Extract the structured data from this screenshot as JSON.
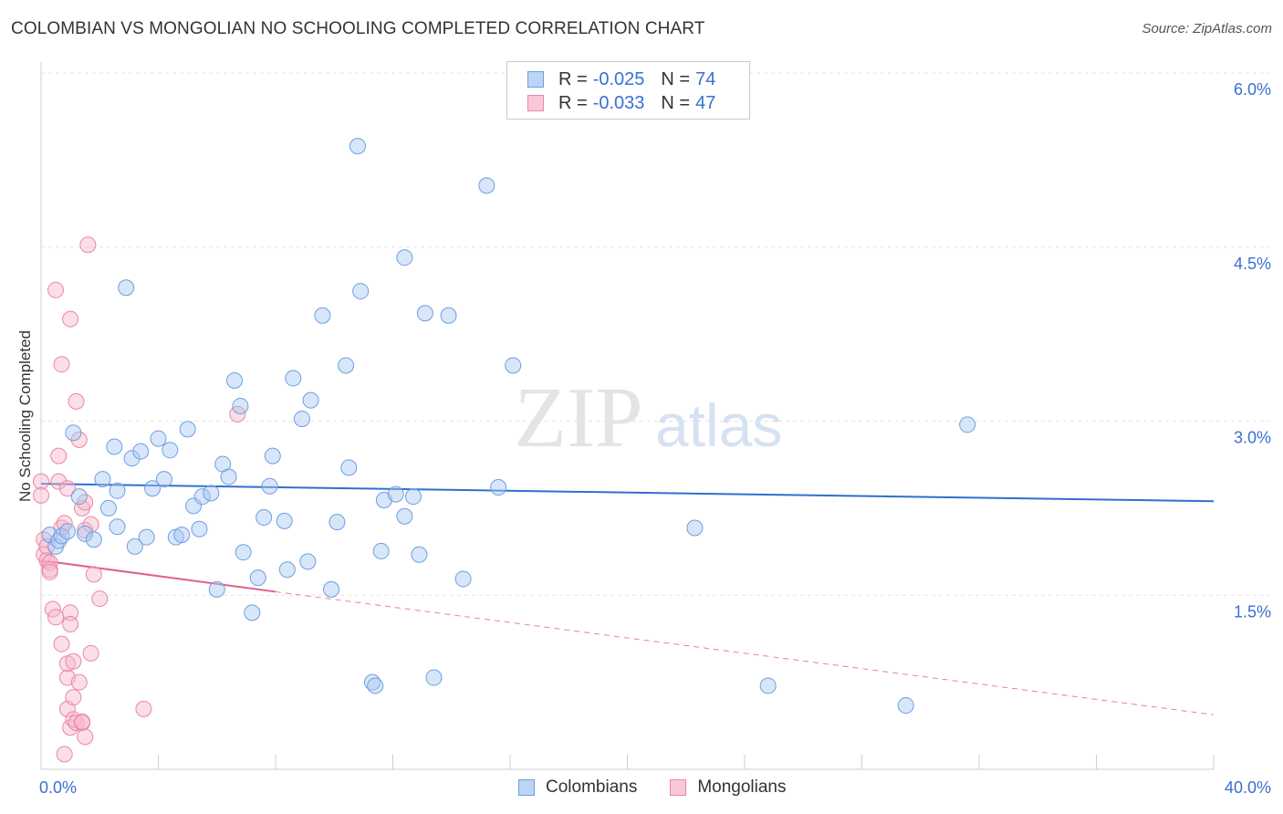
{
  "title": "COLOMBIAN VS MONGOLIAN NO SCHOOLING COMPLETED CORRELATION CHART",
  "source": "Source: ZipAtlas.com",
  "watermark": {
    "zip": "ZIP",
    "atlas": "atlas"
  },
  "legend": {
    "rows": [
      {
        "r_label": "R = ",
        "r_value": "-0.025",
        "n_label": "N = ",
        "n_value": "74"
      },
      {
        "r_label": "R = ",
        "r_value": "-0.033",
        "n_label": "N = ",
        "n_value": "47"
      }
    ]
  },
  "bottom_legend": {
    "colombians": "Colombians",
    "mongolians": "Mongolians"
  },
  "colors": {
    "blue_fill": "#a9c8f2",
    "blue_stroke": "#6d9fe0",
    "blue_line": "#2f6fcf",
    "pink_fill": "#f7b6c9",
    "pink_stroke": "#e888a6",
    "pink_line": "#e0608b",
    "axis_text": "#3a6fd1"
  },
  "chart_data": {
    "type": "scatter",
    "title": "COLOMBIAN VS MONGOLIAN NO SCHOOLING COMPLETED CORRELATION CHART",
    "xlabel": "",
    "ylabel": "No Schooling Completed",
    "xlim": [
      0,
      40
    ],
    "ylim": [
      0,
      6.2
    ],
    "x_tick_labels": [
      "0.0%",
      "40.0%"
    ],
    "y_ticks": [
      1.5,
      3.0,
      4.5,
      6.0
    ],
    "y_tick_labels": [
      "1.5%",
      "3.0%",
      "4.5%",
      "6.0%"
    ],
    "series": [
      {
        "name": "Colombians",
        "r": -0.025,
        "n": 74,
        "trend": {
          "x": [
            0,
            40
          ],
          "y": [
            2.46,
            2.31
          ]
        },
        "points": [
          [
            0.3,
            2.02
          ],
          [
            0.5,
            1.92
          ],
          [
            0.6,
            1.97
          ],
          [
            0.7,
            2.01
          ],
          [
            0.9,
            2.05
          ],
          [
            1.1,
            2.9
          ],
          [
            1.3,
            2.35
          ],
          [
            1.5,
            2.03
          ],
          [
            1.8,
            1.98
          ],
          [
            2.1,
            2.5
          ],
          [
            2.3,
            2.25
          ],
          [
            2.5,
            2.78
          ],
          [
            2.6,
            2.4
          ],
          [
            2.6,
            2.09
          ],
          [
            2.9,
            4.15
          ],
          [
            3.1,
            2.68
          ],
          [
            3.2,
            1.92
          ],
          [
            3.4,
            2.74
          ],
          [
            3.6,
            2.0
          ],
          [
            3.8,
            2.42
          ],
          [
            4.0,
            2.85
          ],
          [
            4.2,
            2.5
          ],
          [
            4.4,
            2.75
          ],
          [
            4.6,
            2.0
          ],
          [
            4.8,
            2.02
          ],
          [
            5.0,
            2.93
          ],
          [
            5.2,
            2.27
          ],
          [
            5.4,
            2.07
          ],
          [
            5.5,
            2.35
          ],
          [
            5.8,
            2.38
          ],
          [
            6.0,
            1.55
          ],
          [
            6.2,
            2.63
          ],
          [
            6.4,
            2.52
          ],
          [
            6.6,
            3.35
          ],
          [
            6.8,
            3.13
          ],
          [
            6.9,
            1.87
          ],
          [
            7.2,
            1.35
          ],
          [
            7.4,
            1.65
          ],
          [
            7.6,
            2.17
          ],
          [
            7.8,
            2.44
          ],
          [
            7.9,
            2.7
          ],
          [
            8.3,
            2.14
          ],
          [
            8.4,
            1.72
          ],
          [
            8.6,
            3.37
          ],
          [
            8.9,
            3.02
          ],
          [
            9.1,
            1.79
          ],
          [
            9.2,
            3.18
          ],
          [
            9.6,
            3.91
          ],
          [
            9.9,
            1.55
          ],
          [
            10.1,
            2.13
          ],
          [
            10.4,
            3.48
          ],
          [
            10.5,
            2.6
          ],
          [
            10.8,
            5.37
          ],
          [
            10.9,
            4.12
          ],
          [
            11.3,
            0.75
          ],
          [
            11.4,
            0.72
          ],
          [
            11.6,
            1.88
          ],
          [
            11.7,
            2.32
          ],
          [
            12.1,
            2.37
          ],
          [
            12.4,
            2.18
          ],
          [
            12.4,
            4.41
          ],
          [
            12.7,
            2.35
          ],
          [
            12.9,
            1.85
          ],
          [
            13.1,
            3.93
          ],
          [
            13.4,
            0.79
          ],
          [
            13.9,
            3.91
          ],
          [
            14.4,
            1.64
          ],
          [
            15.2,
            5.03
          ],
          [
            15.6,
            2.43
          ],
          [
            16.1,
            3.48
          ],
          [
            22.3,
            2.08
          ],
          [
            24.8,
            0.72
          ],
          [
            29.5,
            0.55
          ],
          [
            31.6,
            2.97
          ]
        ]
      },
      {
        "name": "Mongolians",
        "r": -0.033,
        "n": 47,
        "trend": {
          "x": [
            0,
            8
          ],
          "y": [
            1.8,
            1.53
          ]
        },
        "trend_extended": {
          "x": [
            8,
            40
          ],
          "y": [
            1.53,
            0.47
          ]
        },
        "points": [
          [
            0.0,
            2.48
          ],
          [
            0.0,
            2.36
          ],
          [
            0.1,
            1.98
          ],
          [
            0.1,
            1.85
          ],
          [
            0.2,
            1.8
          ],
          [
            0.2,
            1.92
          ],
          [
            0.3,
            1.78
          ],
          [
            0.3,
            1.72
          ],
          [
            0.3,
            1.7
          ],
          [
            0.4,
            1.38
          ],
          [
            0.5,
            1.31
          ],
          [
            0.5,
            4.13
          ],
          [
            0.6,
            2.48
          ],
          [
            0.6,
            2.7
          ],
          [
            0.7,
            3.49
          ],
          [
            0.7,
            1.08
          ],
          [
            0.7,
            2.08
          ],
          [
            0.8,
            2.12
          ],
          [
            0.8,
            0.13
          ],
          [
            0.9,
            0.79
          ],
          [
            0.9,
            0.91
          ],
          [
            0.9,
            0.52
          ],
          [
            0.9,
            2.42
          ],
          [
            1.0,
            1.35
          ],
          [
            1.0,
            1.25
          ],
          [
            1.0,
            3.88
          ],
          [
            1.0,
            0.36
          ],
          [
            1.1,
            0.93
          ],
          [
            1.1,
            0.62
          ],
          [
            1.1,
            0.43
          ],
          [
            1.2,
            3.17
          ],
          [
            1.2,
            0.4
          ],
          [
            1.3,
            0.75
          ],
          [
            1.3,
            2.84
          ],
          [
            1.4,
            0.4
          ],
          [
            1.4,
            0.41
          ],
          [
            1.4,
            2.25
          ],
          [
            1.5,
            2.3
          ],
          [
            1.5,
            2.06
          ],
          [
            1.5,
            0.28
          ],
          [
            1.6,
            4.52
          ],
          [
            1.7,
            2.11
          ],
          [
            1.7,
            1.0
          ],
          [
            1.8,
            1.68
          ],
          [
            2.0,
            1.47
          ],
          [
            3.5,
            0.52
          ],
          [
            6.7,
            3.06
          ]
        ]
      }
    ]
  }
}
